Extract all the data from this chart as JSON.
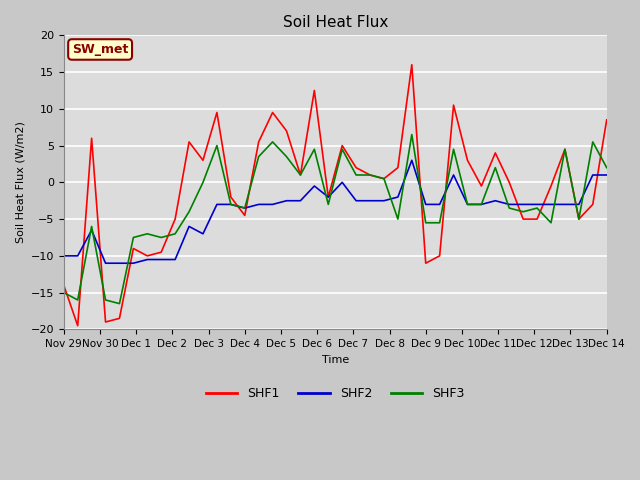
{
  "title": "Soil Heat Flux",
  "ylabel": "Soil Heat Flux (W/m2)",
  "xlabel": "Time",
  "ylim": [
    -20,
    20
  ],
  "yticks": [
    -20,
    -15,
    -10,
    -5,
    0,
    5,
    10,
    15,
    20
  ],
  "annotation": "SW_met",
  "annotation_color": "#8B0000",
  "annotation_bg": "#FFFFCC",
  "plot_bg": "#DCDCDC",
  "fig_bg": "#C8C8C8",
  "grid_color": "#FFFFFF",
  "colors": {
    "SHF1": "#FF0000",
    "SHF2": "#0000CD",
    "SHF3": "#008000"
  },
  "xtick_labels": [
    "Nov 29",
    "Nov 30",
    "Dec 1",
    "Dec 2",
    "Dec 3",
    "Dec 4",
    "Dec 5",
    "Dec 6",
    "Dec 7",
    "Dec 8",
    "Dec 9",
    "Dec 10",
    "Dec 11",
    "Dec 12",
    "Dec 13",
    "Dec 14"
  ],
  "SHF1": [
    -14.0,
    -19.5,
    6.0,
    -19.0,
    -18.5,
    -9.0,
    -10.0,
    -9.5,
    -5.0,
    5.5,
    3.0,
    9.5,
    -2.0,
    -4.5,
    5.5,
    9.5,
    7.0,
    1.0,
    12.5,
    -2.0,
    5.0,
    2.0,
    1.0,
    0.5,
    2.0,
    16.0,
    -11.0,
    -10.0,
    10.5,
    3.0,
    -0.5,
    4.0,
    0.0,
    -5.0,
    -5.0,
    -0.5,
    4.5,
    -5.0,
    -3.0,
    8.5
  ],
  "SHF2": [
    -10.0,
    -10.0,
    -6.5,
    -11.0,
    -11.0,
    -11.0,
    -10.5,
    -10.5,
    -10.5,
    -6.0,
    -7.0,
    -3.0,
    -3.0,
    -3.5,
    -3.0,
    -3.0,
    -2.5,
    -2.5,
    -0.5,
    -2.0,
    0.0,
    -2.5,
    -2.5,
    -2.5,
    -2.0,
    3.0,
    -3.0,
    -3.0,
    1.0,
    -3.0,
    -3.0,
    -2.5,
    -3.0,
    -3.0,
    -3.0,
    -3.0,
    -3.0,
    -3.0,
    1.0,
    1.0
  ],
  "SHF3": [
    -15.0,
    -16.0,
    -6.0,
    -16.0,
    -16.5,
    -7.5,
    -7.0,
    -7.5,
    -7.0,
    -4.0,
    0.0,
    5.0,
    -3.0,
    -3.5,
    3.5,
    5.5,
    3.5,
    1.0,
    4.5,
    -3.0,
    4.5,
    1.0,
    1.0,
    0.5,
    -5.0,
    6.5,
    -5.5,
    -5.5,
    4.5,
    -3.0,
    -3.0,
    2.0,
    -3.5,
    -4.0,
    -3.5,
    -5.5,
    4.5,
    -5.0,
    5.5,
    2.0
  ],
  "n_points": 40,
  "linewidth": 1.2,
  "title_fontsize": 11,
  "label_fontsize": 8,
  "tick_fontsize": 8,
  "legend_fontsize": 9
}
